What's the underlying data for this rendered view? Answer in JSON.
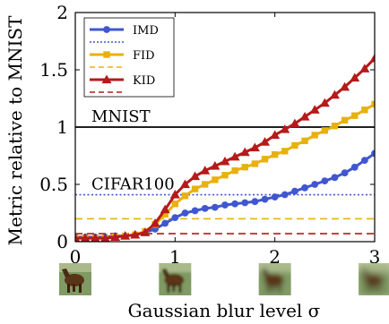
{
  "chart_data": {
    "type": "line",
    "xlabel": "Gaussian blur level σ",
    "ylabel": "Metric relative to MNIST",
    "xlim": [
      0,
      3
    ],
    "ylim": [
      0,
      2
    ],
    "x_ticks": [
      "0",
      "1",
      "2",
      "3"
    ],
    "y_ticks": [
      "0",
      "0.5",
      "1",
      "1.5",
      "2"
    ],
    "grid": false,
    "legend_position": "top-left",
    "series": [
      {
        "name": "IMD",
        "color": "#4057d1",
        "marker": "circle",
        "x": [
          0,
          0.1,
          0.2,
          0.3,
          0.4,
          0.5,
          0.6,
          0.7,
          0.8,
          0.9,
          1.0,
          1.1,
          1.2,
          1.3,
          1.4,
          1.5,
          1.6,
          1.7,
          1.8,
          1.9,
          2.0,
          2.1,
          2.2,
          2.3,
          2.4,
          2.5,
          2.6,
          2.7,
          2.8,
          2.9,
          3.0
        ],
        "values": [
          0.04,
          0.04,
          0.04,
          0.04,
          0.05,
          0.05,
          0.06,
          0.08,
          0.11,
          0.16,
          0.21,
          0.25,
          0.27,
          0.29,
          0.3,
          0.32,
          0.33,
          0.34,
          0.35,
          0.37,
          0.39,
          0.41,
          0.44,
          0.47,
          0.5,
          0.53,
          0.56,
          0.6,
          0.65,
          0.71,
          0.77
        ]
      },
      {
        "name": "FID",
        "color": "#e8b10d",
        "marker": "square",
        "x": [
          0,
          0.1,
          0.2,
          0.3,
          0.4,
          0.5,
          0.6,
          0.7,
          0.8,
          0.9,
          1.0,
          1.1,
          1.2,
          1.3,
          1.4,
          1.5,
          1.6,
          1.7,
          1.8,
          1.9,
          2.0,
          2.1,
          2.2,
          2.3,
          2.4,
          2.5,
          2.6,
          2.7,
          2.8,
          2.9,
          3.0
        ],
        "values": [
          0.03,
          0.03,
          0.03,
          0.03,
          0.04,
          0.05,
          0.06,
          0.09,
          0.15,
          0.24,
          0.33,
          0.4,
          0.46,
          0.5,
          0.54,
          0.58,
          0.62,
          0.65,
          0.68,
          0.72,
          0.76,
          0.79,
          0.84,
          0.88,
          0.93,
          0.97,
          1.01,
          1.06,
          1.1,
          1.15,
          1.2
        ]
      },
      {
        "name": "KID",
        "color": "#b61a1a",
        "marker": "triangle",
        "x": [
          0,
          0.1,
          0.2,
          0.3,
          0.4,
          0.5,
          0.6,
          0.7,
          0.8,
          0.9,
          1.0,
          1.1,
          1.2,
          1.3,
          1.4,
          1.5,
          1.6,
          1.7,
          1.8,
          1.9,
          2.0,
          2.1,
          2.2,
          2.3,
          2.4,
          2.5,
          2.6,
          2.7,
          2.8,
          2.9,
          3.0
        ],
        "values": [
          0.03,
          0.03,
          0.03,
          0.03,
          0.04,
          0.05,
          0.06,
          0.08,
          0.16,
          0.28,
          0.41,
          0.5,
          0.57,
          0.62,
          0.66,
          0.7,
          0.74,
          0.78,
          0.82,
          0.87,
          0.93,
          0.98,
          1.03,
          1.09,
          1.15,
          1.21,
          1.28,
          1.35,
          1.43,
          1.51,
          1.6
        ]
      }
    ],
    "reference_lines": [
      {
        "label": "MNIST",
        "y": 1.0,
        "color": "#000000",
        "style": "solid"
      },
      {
        "label": "CIFAR100",
        "y": 0.41,
        "color": "#4057d1",
        "style": "dotted"
      },
      {
        "label": "",
        "y": 0.2,
        "color": "#e8b10d",
        "style": "dashed"
      },
      {
        "label": "",
        "y": 0.07,
        "color": "#b61a1a",
        "style": "dashed"
      }
    ],
    "thumbnails": [
      {
        "sigma": 0,
        "blur": 0
      },
      {
        "sigma": 1,
        "blur": 1
      },
      {
        "sigma": 2,
        "blur": 2
      },
      {
        "sigma": 3,
        "blur": 3
      }
    ]
  }
}
